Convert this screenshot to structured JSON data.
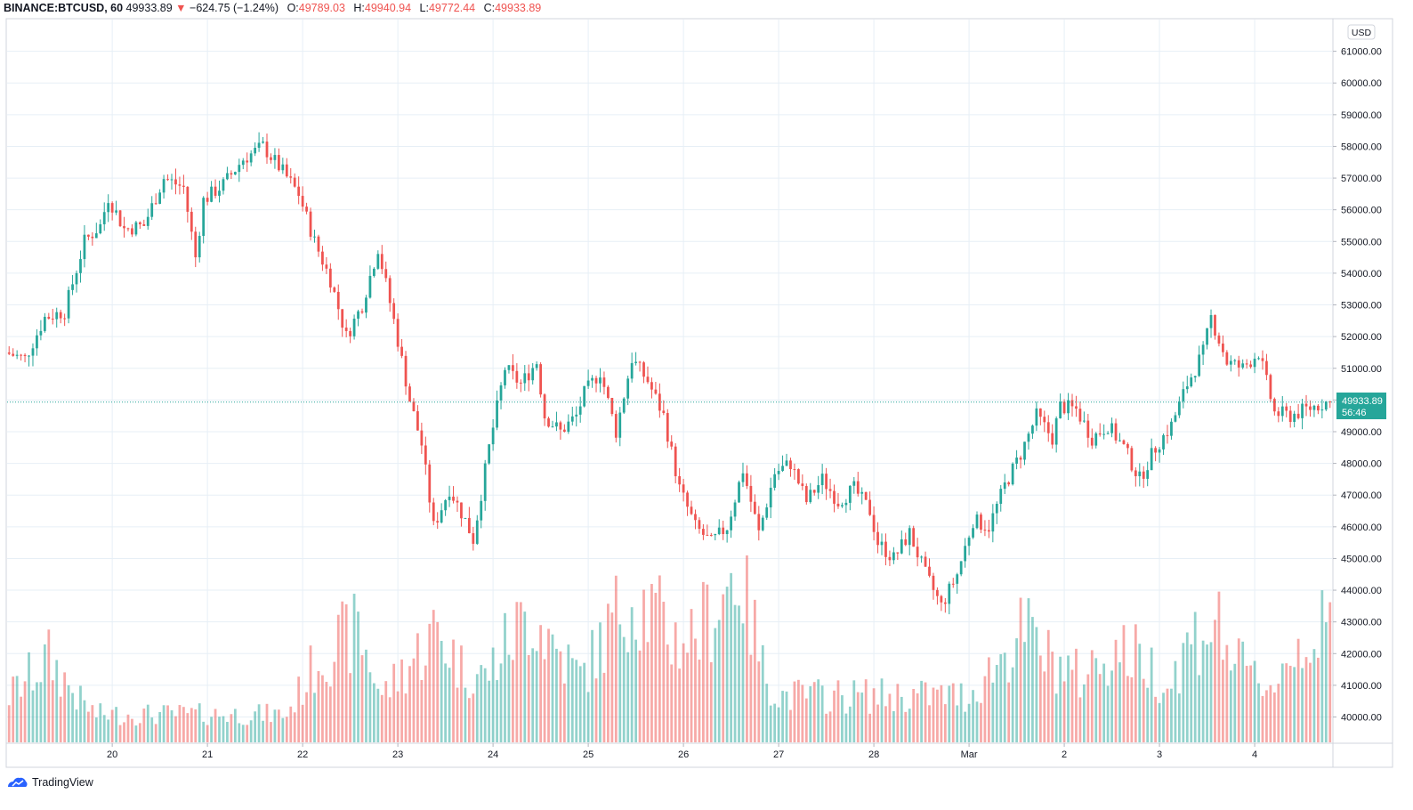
{
  "header": {
    "symbol": "BINANCE:BTCUSD, 60",
    "last": "49933.89",
    "change_arrow": "▼",
    "change": "−624.75 (−1.24%)",
    "o_label": "O:",
    "o_value": "49789.03",
    "h_label": "H:",
    "h_value": "49940.94",
    "l_label": "L:",
    "l_value": "49772.44",
    "c_label": "C:",
    "c_value": "49933.89"
  },
  "price_axis": {
    "currency": "USD",
    "last_price_label": "49933.89",
    "countdown": "56:46"
  },
  "brand": {
    "name": "TradingView"
  },
  "colors": {
    "up": "#26a69a",
    "down": "#ef5350",
    "grid": "#e7eff6",
    "axis": "#b2b5be",
    "text": "#131722"
  },
  "chart_data": {
    "type": "candlestick",
    "interval": "60",
    "yrange": [
      39200,
      62000
    ],
    "yticks": [
      40000,
      41000,
      42000,
      43000,
      44000,
      45000,
      46000,
      47000,
      48000,
      49000,
      50000,
      51000,
      52000,
      53000,
      54000,
      55000,
      56000,
      57000,
      58000,
      59000,
      60000,
      61000
    ],
    "ytick_labels": [
      "40000.00",
      "41000.00",
      "42000.00",
      "43000.00",
      "44000.00",
      "45000.00",
      "46000.00",
      "47000.00",
      "48000.00",
      "49000.00",
      "50000.00",
      "51000.00",
      "52000.00",
      "53000.00",
      "54000.00",
      "55000.00",
      "56000.00",
      "57000.00",
      "58000.00",
      "59000.00",
      "60000.00",
      "61000.00"
    ],
    "xticks": [
      {
        "label": "20",
        "index": 26
      },
      {
        "label": "21",
        "index": 50
      },
      {
        "label": "22",
        "index": 74
      },
      {
        "label": "23",
        "index": 98
      },
      {
        "label": "24",
        "index": 122
      },
      {
        "label": "25",
        "index": 146
      },
      {
        "label": "26",
        "index": 170
      },
      {
        "label": "27",
        "index": 194
      },
      {
        "label": "28",
        "index": 218
      },
      {
        "label": "Mar",
        "index": 242
      },
      {
        "label": "2",
        "index": 266
      },
      {
        "label": "3",
        "index": 290
      },
      {
        "label": "4",
        "index": 314
      }
    ],
    "bars_count": 334,
    "last_price": 49933.89,
    "anchors": [
      [
        0,
        51500
      ],
      [
        5,
        51300
      ],
      [
        10,
        52600
      ],
      [
        15,
        52800
      ],
      [
        20,
        55000
      ],
      [
        24,
        55500
      ],
      [
        26,
        56400
      ],
      [
        30,
        55400
      ],
      [
        35,
        55500
      ],
      [
        40,
        57000
      ],
      [
        45,
        56700
      ],
      [
        48,
        54500
      ],
      [
        50,
        56300
      ],
      [
        55,
        56800
      ],
      [
        60,
        57600
      ],
      [
        65,
        58000
      ],
      [
        70,
        57200
      ],
      [
        74,
        56500
      ],
      [
        78,
        55000
      ],
      [
        82,
        53800
      ],
      [
        86,
        52000
      ],
      [
        90,
        53000
      ],
      [
        94,
        54800
      ],
      [
        98,
        52500
      ],
      [
        102,
        50000
      ],
      [
        105,
        48600
      ],
      [
        108,
        46000
      ],
      [
        112,
        47200
      ],
      [
        116,
        46200
      ],
      [
        118,
        45600
      ],
      [
        122,
        48500
      ],
      [
        126,
        51000
      ],
      [
        130,
        50500
      ],
      [
        134,
        51200
      ],
      [
        136,
        49500
      ],
      [
        140,
        49000
      ],
      [
        144,
        49500
      ],
      [
        146,
        50200
      ],
      [
        150,
        50900
      ],
      [
        154,
        49000
      ],
      [
        158,
        51300
      ],
      [
        162,
        50600
      ],
      [
        166,
        49500
      ],
      [
        170,
        47200
      ],
      [
        174,
        46000
      ],
      [
        178,
        45500
      ],
      [
        182,
        46000
      ],
      [
        186,
        47800
      ],
      [
        190,
        45800
      ],
      [
        194,
        47700
      ],
      [
        198,
        48000
      ],
      [
        202,
        46800
      ],
      [
        206,
        47500
      ],
      [
        210,
        46800
      ],
      [
        214,
        47200
      ],
      [
        218,
        46500
      ],
      [
        220,
        45500
      ],
      [
        224,
        45000
      ],
      [
        228,
        45800
      ],
      [
        232,
        44500
      ],
      [
        236,
        43500
      ],
      [
        240,
        44500
      ],
      [
        244,
        46200
      ],
      [
        248,
        46000
      ],
      [
        252,
        47300
      ],
      [
        256,
        48300
      ],
      [
        260,
        49500
      ],
      [
        264,
        48800
      ],
      [
        266,
        49800
      ],
      [
        270,
        49700
      ],
      [
        274,
        48800
      ],
      [
        278,
        49200
      ],
      [
        282,
        48500
      ],
      [
        286,
        47500
      ],
      [
        290,
        48500
      ],
      [
        294,
        49200
      ],
      [
        298,
        50500
      ],
      [
        302,
        51500
      ],
      [
        304,
        52600
      ],
      [
        308,
        51200
      ],
      [
        312,
        51000
      ],
      [
        316,
        51500
      ],
      [
        320,
        49600
      ],
      [
        324,
        49500
      ],
      [
        328,
        49700
      ],
      [
        333,
        49934
      ]
    ],
    "volume_levels": [
      [
        0,
        0.25
      ],
      [
        10,
        0.45
      ],
      [
        18,
        0.22
      ],
      [
        22,
        0.15
      ],
      [
        70,
        0.15
      ],
      [
        78,
        0.45
      ],
      [
        88,
        0.6
      ],
      [
        94,
        0.25
      ],
      [
        102,
        0.45
      ],
      [
        108,
        0.6
      ],
      [
        114,
        0.4
      ],
      [
        120,
        0.35
      ],
      [
        126,
        0.55
      ],
      [
        132,
        0.7
      ],
      [
        138,
        0.5
      ],
      [
        144,
        0.35
      ],
      [
        150,
        0.55
      ],
      [
        156,
        0.8
      ],
      [
        162,
        0.7
      ],
      [
        168,
        0.55
      ],
      [
        174,
        0.6
      ],
      [
        180,
        0.8
      ],
      [
        184,
        0.95
      ],
      [
        190,
        0.4
      ],
      [
        194,
        0.25
      ],
      [
        242,
        0.25
      ],
      [
        248,
        0.4
      ],
      [
        256,
        0.6
      ],
      [
        262,
        0.45
      ],
      [
        270,
        0.35
      ],
      [
        278,
        0.5
      ],
      [
        286,
        0.45
      ],
      [
        292,
        0.3
      ],
      [
        298,
        0.55
      ],
      [
        304,
        0.65
      ],
      [
        310,
        0.4
      ],
      [
        318,
        0.3
      ],
      [
        326,
        0.55
      ],
      [
        333,
        0.6
      ]
    ],
    "volume_axis_note": "volume histogram overlaid at bottom of pane"
  }
}
